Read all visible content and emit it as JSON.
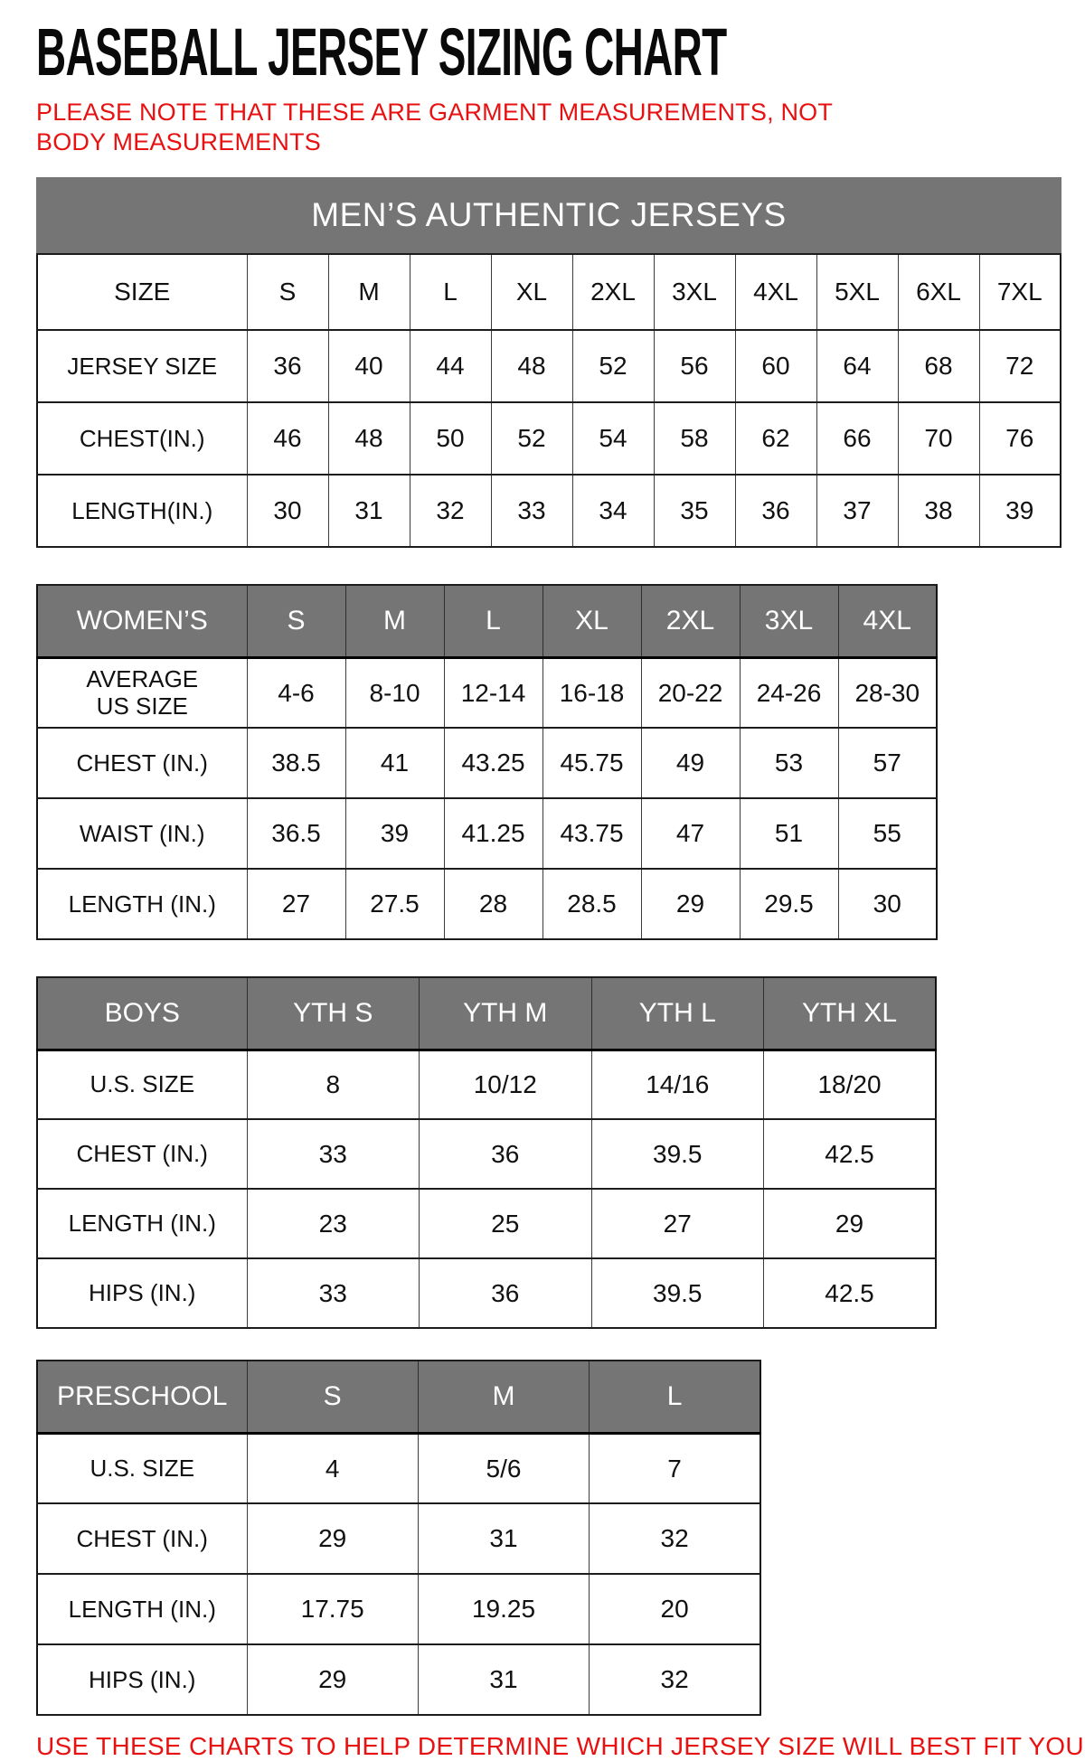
{
  "title": "BASEBALL JERSEY SIZING CHART",
  "note": "PLEASE NOTE THAT THESE ARE GARMENT MEASUREMENTS, NOT BODY MEASUREMENTS",
  "footer": "USE THESE CHARTS TO HELP DETERMINE WHICH JERSEY SIZE WILL BEST FIT YOU.",
  "colors": {
    "accent_red": "#e81111",
    "banner_gray": "#757575",
    "banner_text": "#ffffff",
    "border_dark": "#1c1c1c"
  },
  "tables": [
    {
      "id": "mens",
      "banner": "MEN’S AUTHENTIC JERSEYS",
      "header_style": "plain",
      "header": {
        "label": "SIZE",
        "cols": [
          "S",
          "M",
          "L",
          "XL",
          "2XL",
          "3XL",
          "4XL",
          "5XL",
          "6XL",
          "7XL"
        ]
      },
      "rows": [
        {
          "label": "JERSEY SIZE",
          "values": [
            "36",
            "40",
            "44",
            "48",
            "52",
            "56",
            "60",
            "64",
            "68",
            "72"
          ]
        },
        {
          "label": "CHEST(IN.)",
          "values": [
            "46",
            "48",
            "50",
            "52",
            "54",
            "58",
            "62",
            "66",
            "70",
            "76"
          ]
        },
        {
          "label": "LENGTH(IN.)",
          "values": [
            "30",
            "31",
            "32",
            "33",
            "34",
            "35",
            "36",
            "37",
            "38",
            "39"
          ]
        }
      ]
    },
    {
      "id": "womens",
      "header_style": "gray",
      "header": {
        "label": "WOMEN’S",
        "cols": [
          "S",
          "M",
          "L",
          "XL",
          "2XL",
          "3XL",
          "4XL"
        ]
      },
      "rows": [
        {
          "label": "AVERAGE\nUS SIZE",
          "values": [
            "4-6",
            "8-10",
            "12-14",
            "16-18",
            "20-22",
            "24-26",
            "28-30"
          ]
        },
        {
          "label": "CHEST (IN.)",
          "values": [
            "38.5",
            "41",
            "43.25",
            "45.75",
            "49",
            "53",
            "57"
          ]
        },
        {
          "label": "WAIST (IN.)",
          "values": [
            "36.5",
            "39",
            "41.25",
            "43.75",
            "47",
            "51",
            "55"
          ]
        },
        {
          "label": "LENGTH (IN.)",
          "values": [
            "27",
            "27.5",
            "28",
            "28.5",
            "29",
            "29.5",
            "30"
          ]
        }
      ]
    },
    {
      "id": "boys",
      "header_style": "gray",
      "header": {
        "label": "BOYS",
        "cols": [
          "YTH S",
          "YTH M",
          "YTH L",
          "YTH XL"
        ]
      },
      "rows": [
        {
          "label": "U.S. SIZE",
          "values": [
            "8",
            "10/12",
            "14/16",
            "18/20"
          ]
        },
        {
          "label": "CHEST (IN.)",
          "values": [
            "33",
            "36",
            "39.5",
            "42.5"
          ]
        },
        {
          "label": "LENGTH (IN.)",
          "values": [
            "23",
            "25",
            "27",
            "29"
          ]
        },
        {
          "label": "HIPS (IN.)",
          "values": [
            "33",
            "36",
            "39.5",
            "42.5"
          ]
        }
      ]
    },
    {
      "id": "preschool",
      "header_style": "gray",
      "header": {
        "label": "PRESCHOOL",
        "cols": [
          "S",
          "M",
          "L"
        ]
      },
      "rows": [
        {
          "label": "U.S. SIZE",
          "values": [
            "4",
            "5/6",
            "7"
          ]
        },
        {
          "label": "CHEST (IN.)",
          "values": [
            "29",
            "31",
            "32"
          ]
        },
        {
          "label": "LENGTH (IN.)",
          "values": [
            "17.75",
            "19.25",
            "20"
          ]
        },
        {
          "label": "HIPS (IN.)",
          "values": [
            "29",
            "31",
            "32"
          ]
        }
      ]
    }
  ]
}
